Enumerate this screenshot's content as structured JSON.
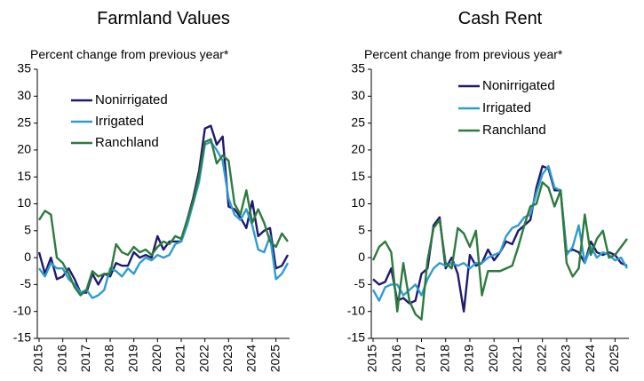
{
  "chart_data": [
    {
      "type": "line",
      "title": "Farmland Values",
      "subtitle": "Percent change from previous year*",
      "categories": [
        "2015",
        null,
        null,
        null,
        "2016",
        null,
        null,
        null,
        "2017",
        null,
        null,
        null,
        "2018",
        null,
        null,
        null,
        "2019",
        null,
        null,
        null,
        "2020",
        null,
        null,
        null,
        "2021",
        null,
        null,
        null,
        "2022",
        null,
        null,
        null,
        "2023",
        null,
        null,
        null,
        "2024",
        null,
        null,
        null,
        "2025",
        null,
        null
      ],
      "series": [
        {
          "name": "Nonirrigated",
          "color": "#1f1a6e",
          "values": [
            1,
            -3,
            0,
            -4,
            -3.5,
            -2,
            -4,
            -6.5,
            -6.5,
            -3,
            -5,
            -3,
            -3.5,
            -1,
            -1.5,
            -1.5,
            1,
            0,
            0.5,
            0,
            4,
            1.5,
            3,
            3,
            3,
            7,
            11,
            16,
            24,
            24.5,
            21,
            22.5,
            9.5,
            9,
            7.5,
            5.5,
            10.5,
            4,
            5,
            5.5,
            -2,
            -1.5,
            0.5
          ]
        },
        {
          "name": "Irrigated",
          "color": "#2e9ccf",
          "values": [
            -2,
            -3.5,
            -1,
            -2,
            -2,
            -4,
            -5,
            -6.5,
            -6,
            -7.5,
            -7,
            -6,
            -2,
            -2.5,
            -3.5,
            -2,
            -3,
            -1,
            0,
            -0.5,
            0.5,
            0,
            0.5,
            2.5,
            3,
            6,
            10,
            14,
            21,
            21.5,
            20,
            18,
            11,
            8,
            7,
            9,
            6,
            1.5,
            1,
            4,
            -4,
            -3,
            -1
          ]
        },
        {
          "name": "Ranchland",
          "color": "#2d7a3e",
          "values": [
            7,
            8.7,
            8,
            0,
            -1,
            -3,
            -5.5,
            -7,
            -6,
            -2.5,
            -3.5,
            -3,
            -3,
            2.5,
            1,
            0.5,
            2,
            1,
            1.5,
            0.5,
            2,
            3,
            2.5,
            4,
            3.5,
            7,
            10.5,
            15,
            21.5,
            22,
            17.5,
            19,
            18,
            10,
            8,
            12.5,
            6.5,
            9,
            6.5,
            3,
            2,
            4.5,
            3
          ]
        }
      ],
      "ylim": [
        -15,
        35
      ],
      "yticks": [
        -15,
        -10,
        -5,
        0,
        5,
        10,
        15,
        20,
        25,
        30,
        35
      ],
      "grid": false,
      "legend": "upper left"
    },
    {
      "type": "line",
      "title": "Cash Rent",
      "subtitle": "Percent change from previous year*",
      "categories": [
        "2015",
        null,
        null,
        null,
        "2016",
        null,
        null,
        null,
        "2017",
        null,
        null,
        null,
        "2018",
        null,
        null,
        null,
        "2019",
        null,
        null,
        null,
        "2020",
        null,
        null,
        null,
        "2021",
        null,
        null,
        null,
        "2022",
        null,
        null,
        null,
        "2023",
        null,
        null,
        null,
        "2024",
        null,
        null,
        null,
        "2025",
        null,
        null
      ],
      "series": [
        {
          "name": "Nonirrigated",
          "color": "#1f1a6e",
          "values": [
            -4,
            -5,
            -4.5,
            -2,
            -8,
            -7.5,
            -8.5,
            -8,
            -3,
            -2,
            6,
            7.5,
            -2,
            0,
            -3,
            -10,
            0.5,
            -1.5,
            -1,
            1.5,
            -0.5,
            1,
            3,
            2.5,
            5,
            6,
            7,
            13,
            17,
            16.5,
            12.5,
            12.5,
            1,
            1.5,
            1,
            -1,
            3,
            1,
            0.5,
            1,
            0.5,
            -1,
            -1.5
          ]
        },
        {
          "name": "Irrigated",
          "color": "#2e9ccf",
          "values": [
            -6,
            -8,
            -5.5,
            -5,
            -5,
            -7,
            -6,
            -5,
            -7,
            -4,
            -2,
            -1,
            -1.5,
            -1,
            -1.5,
            -1,
            -2,
            -1,
            -1,
            0,
            0.5,
            1,
            4,
            5.5,
            6,
            7.5,
            8,
            12,
            15.5,
            17,
            13,
            12.5,
            0.5,
            2,
            6,
            -1,
            2,
            0,
            1,
            0.5,
            -0.5,
            0,
            -2
          ]
        },
        {
          "name": "Ranchland",
          "color": "#2d7a3e",
          "values": [
            -0.5,
            2,
            3,
            1,
            -10,
            -1,
            -8,
            -10.5,
            -11.5,
            -0.5,
            5.5,
            7,
            -1,
            -2,
            5.5,
            4.5,
            2,
            5,
            -7,
            -2.5,
            -2.5,
            -2.5,
            -2,
            -1.5,
            2,
            6,
            9.5,
            10,
            14,
            13,
            9.5,
            12.5,
            -1,
            -3.5,
            -2,
            8,
            0.5,
            3.5,
            5,
            0,
            0.5,
            2,
            3.5
          ]
        }
      ],
      "ylim": [
        -15,
        35
      ],
      "yticks": [
        -15,
        -10,
        -5,
        0,
        5,
        10,
        15,
        20,
        25,
        30,
        35
      ],
      "grid": false,
      "legend": "upper left"
    }
  ]
}
